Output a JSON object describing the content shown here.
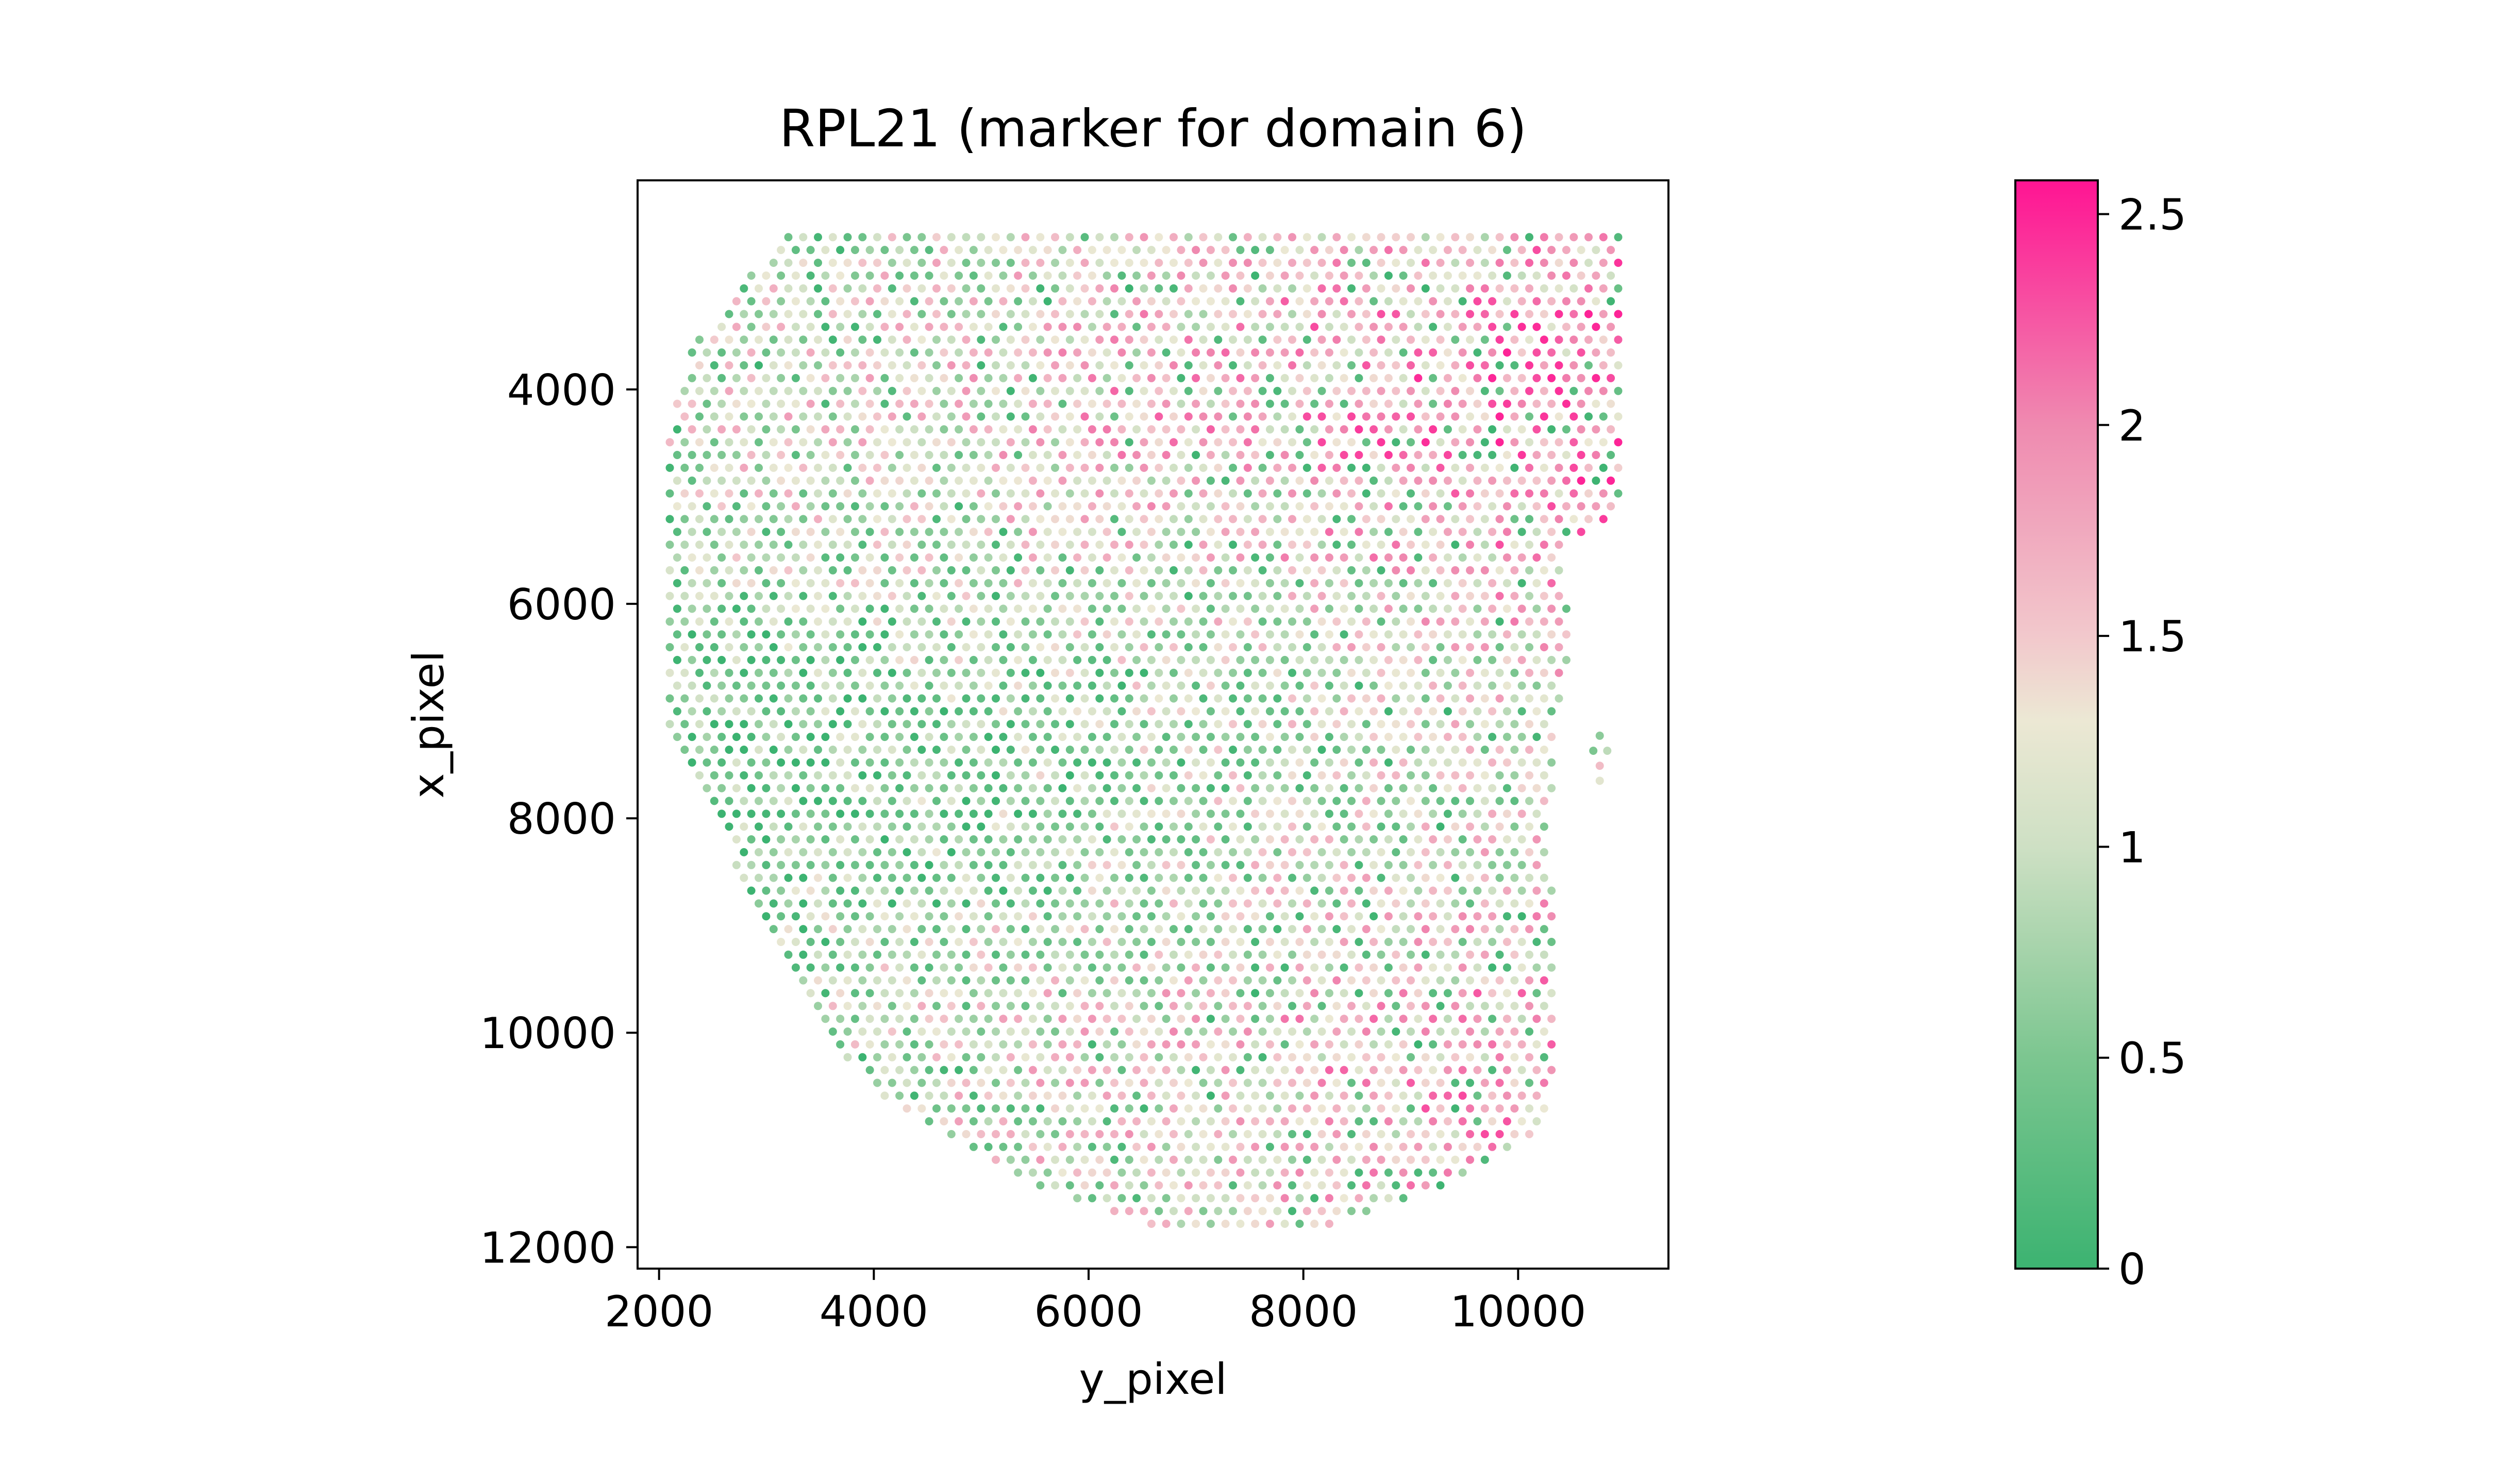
{
  "chart_data": {
    "type": "scatter",
    "title": "RPL21 (marker for domain 6)",
    "xlabel": "y_pixel",
    "ylabel": "x_pixel",
    "xlim": [
      1800,
      11400
    ],
    "ylim": [
      12200,
      2050
    ],
    "y_inverted": true,
    "grid": false,
    "xticks": [
      2000,
      4000,
      6000,
      8000,
      10000
    ],
    "xtick_labels": [
      "2000",
      "4000",
      "6000",
      "8000",
      "10000"
    ],
    "yticks": [
      4000,
      6000,
      8000,
      10000,
      12000
    ],
    "ytick_labels": [
      "4000",
      "6000",
      "8000",
      "10000",
      "12000"
    ],
    "spot_spacing": 138,
    "tissue_boundary": {
      "top": 2580,
      "bottom": 11800,
      "left_edge": [
        [
          2580,
          3150
        ],
        [
          3600,
          2300
        ],
        [
          4400,
          2100
        ],
        [
          7300,
          2100
        ],
        [
          8000,
          2500
        ],
        [
          9400,
          3200
        ],
        [
          10600,
          4000
        ],
        [
          11300,
          5200
        ],
        [
          11800,
          6500
        ]
      ],
      "right_edge": [
        [
          2580,
          10950
        ],
        [
          5200,
          10950
        ],
        [
          5500,
          10350
        ],
        [
          6300,
          10500
        ],
        [
          7200,
          10350
        ],
        [
          8000,
          10300
        ],
        [
          10300,
          10350
        ],
        [
          10900,
          10250
        ],
        [
          11300,
          9600
        ],
        [
          11800,
          8300
        ]
      ]
    },
    "expression_summary": "Spot expression values range 0–2.5; higher (pink) values concentrated toward the upper-right and lower-right regions, lower (green) values toward the upper-left.",
    "colorbar": {
      "min": 0,
      "max": 2.58,
      "ticks": [
        0,
        0.5,
        1,
        1.5,
        2,
        2.5
      ],
      "tick_labels": [
        "0",
        "0.5",
        "1",
        "1.5",
        "2",
        "2.5"
      ],
      "colors": [
        {
          "value": 0.0,
          "color": "#3cb371"
        },
        {
          "value": 0.5,
          "color": "#7cc690"
        },
        {
          "value": 1.0,
          "color": "#cee0c4"
        },
        {
          "value": 1.3,
          "color": "#ece8d4"
        },
        {
          "value": 1.5,
          "color": "#f2c8cc"
        },
        {
          "value": 2.0,
          "color": "#ef8ab0"
        },
        {
          "value": 2.58,
          "color": "#ff1493"
        }
      ]
    }
  }
}
